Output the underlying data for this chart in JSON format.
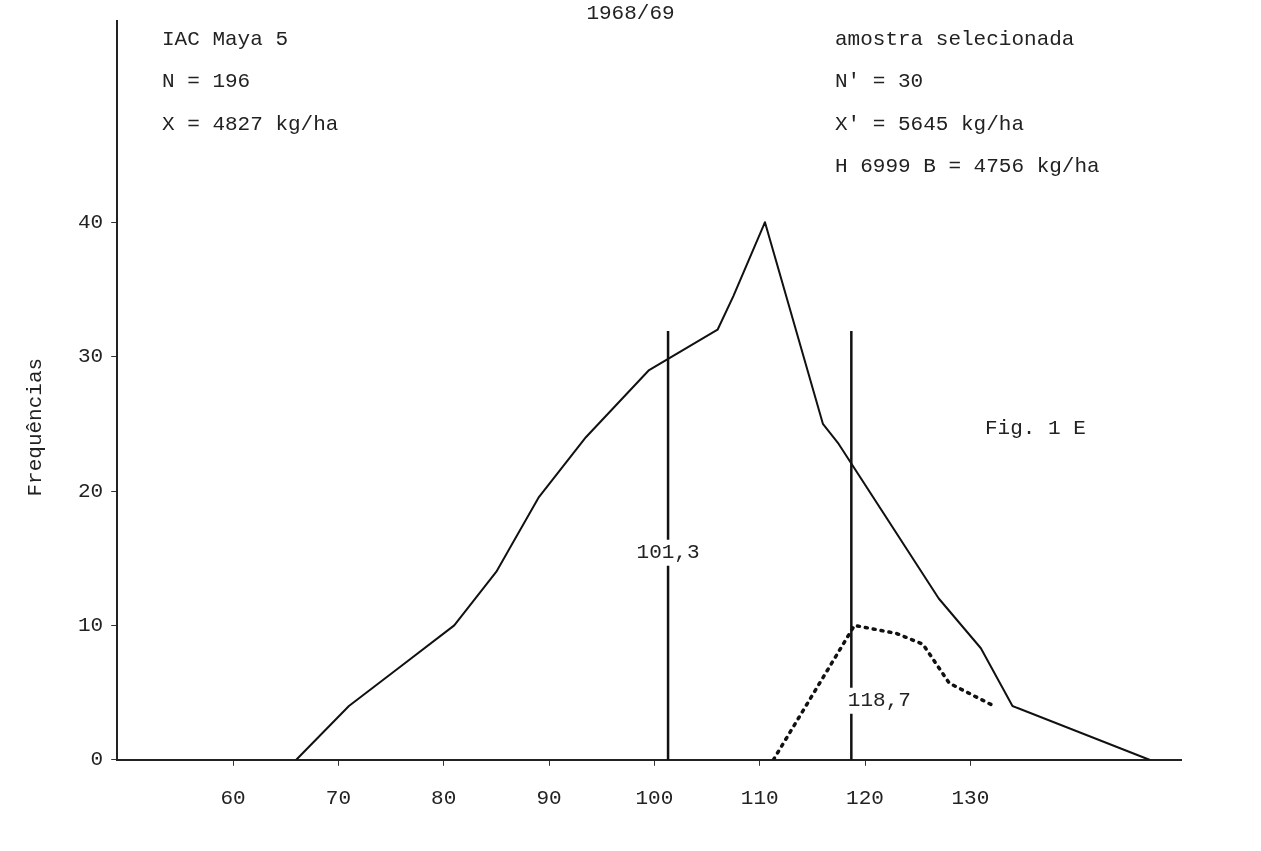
{
  "chart_data": {
    "type": "line",
    "title": "1968/69",
    "ylabel": "Frequências",
    "annotations": [
      "IAC Maya 5",
      "N = 196",
      "X = 4827 kg/ha",
      "amostra selecionada",
      "N' = 30",
      "X' = 5645 kg/ha",
      "H 6999 B = 4756 kg/ha",
      "Fig. 1 E"
    ],
    "series": [
      {
        "color": "#111111",
        "line_style": "solid",
        "x": [
          66,
          71,
          76,
          81,
          85,
          89,
          93.5,
          99.5,
          106,
          107.5,
          110.5,
          116,
          117.5,
          127,
          131,
          134,
          147
        ],
        "values": [
          0,
          4,
          7,
          10,
          14,
          19.5,
          24,
          29,
          32,
          34.5,
          40,
          25,
          23.5,
          12,
          8.3,
          4,
          0
        ]
      },
      {
        "color": "#111111",
        "line_style": "dotted",
        "x": [
          111.3,
          119,
          123,
          125.5,
          128,
          132
        ],
        "values": [
          0,
          10,
          9.4,
          8.6,
          5.7,
          4.1
        ]
      }
    ],
    "ref_lines": [
      {
        "axis": "x",
        "value": 101.3,
        "label": "101,3"
      },
      {
        "axis": "x",
        "value": 118.7,
        "label": "118,7"
      }
    ],
    "xlim": [
      49,
      150
    ],
    "xticks": [
      60,
      70,
      80,
      90,
      100,
      110,
      120,
      130
    ],
    "ylim": [
      0,
      55
    ],
    "yticks": [
      0,
      10,
      20,
      30,
      40
    ],
    "grid": false,
    "legend": false,
    "marker": "none"
  }
}
